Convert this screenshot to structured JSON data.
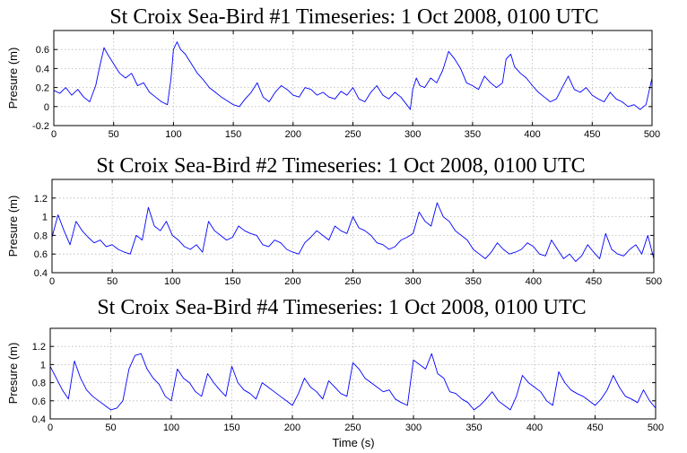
{
  "chart_data": [
    {
      "type": "line",
      "title": "St Croix Sea-Bird #1 Timeseries: 1 Oct 2008, 0100 UTC",
      "ylabel": "Presure (m)",
      "xlabel": "",
      "xlim": [
        0,
        500
      ],
      "ylim": [
        -0.2,
        0.8
      ],
      "xticks": [
        "0",
        "50",
        "100",
        "150",
        "200",
        "250",
        "300",
        "350",
        "400",
        "450",
        "500"
      ],
      "yticks": [
        "-0.2",
        "0",
        "0.2",
        "0.4",
        "0.6"
      ],
      "grid": true,
      "color": "#0000ff",
      "series": [
        {
          "x": [
            0,
            5,
            10,
            15,
            20,
            25,
            30,
            35,
            38,
            42,
            45,
            50,
            55,
            60,
            65,
            70,
            75,
            80,
            85,
            90,
            95,
            98,
            100,
            103,
            106,
            110,
            115,
            120,
            125,
            130,
            135,
            140,
            145,
            150,
            155,
            160,
            165,
            170,
            175,
            180,
            185,
            190,
            195,
            200,
            205,
            210,
            215,
            220,
            225,
            230,
            235,
            240,
            245,
            250,
            255,
            260,
            265,
            270,
            275,
            280,
            285,
            290,
            295,
            298,
            300,
            303,
            306,
            310,
            315,
            320,
            325,
            330,
            335,
            340,
            345,
            350,
            355,
            360,
            365,
            370,
            375,
            378,
            382,
            385,
            390,
            395,
            400,
            405,
            410,
            415,
            420,
            425,
            430,
            435,
            440,
            445,
            450,
            455,
            460,
            465,
            470,
            475,
            480,
            485,
            490,
            495,
            500
          ],
          "y": [
            0.17,
            0.14,
            0.2,
            0.12,
            0.18,
            0.1,
            0.05,
            0.22,
            0.4,
            0.62,
            0.55,
            0.45,
            0.35,
            0.3,
            0.35,
            0.22,
            0.25,
            0.15,
            0.1,
            0.05,
            0.02,
            0.3,
            0.6,
            0.68,
            0.6,
            0.55,
            0.45,
            0.35,
            0.28,
            0.2,
            0.15,
            0.1,
            0.06,
            0.02,
            0.0,
            0.08,
            0.15,
            0.25,
            0.1,
            0.05,
            0.15,
            0.22,
            0.18,
            0.12,
            0.1,
            0.2,
            0.18,
            0.12,
            0.15,
            0.1,
            0.08,
            0.16,
            0.12,
            0.2,
            0.08,
            0.05,
            0.15,
            0.22,
            0.12,
            0.08,
            0.15,
            0.1,
            0.02,
            -0.03,
            0.18,
            0.3,
            0.22,
            0.2,
            0.3,
            0.25,
            0.38,
            0.58,
            0.5,
            0.4,
            0.25,
            0.22,
            0.18,
            0.32,
            0.25,
            0.2,
            0.25,
            0.5,
            0.55,
            0.42,
            0.35,
            0.3,
            0.22,
            0.15,
            0.1,
            0.05,
            0.08,
            0.2,
            0.32,
            0.18,
            0.15,
            0.2,
            0.12,
            0.08,
            0.05,
            0.15,
            0.08,
            0.05,
            0.0,
            0.02,
            -0.03,
            0.02,
            0.3
          ]
        }
      ]
    },
    {
      "type": "line",
      "title": "St Croix Sea-Bird #2 Timeseries: 1 Oct 2008, 0100 UTC",
      "ylabel": "Presure (m)",
      "xlabel": "",
      "xlim": [
        0,
        500
      ],
      "ylim": [
        0.4,
        1.4
      ],
      "xticks": [
        "0",
        "50",
        "100",
        "150",
        "200",
        "250",
        "300",
        "350",
        "400",
        "450",
        "500"
      ],
      "yticks": [
        "0.4",
        "0.6",
        "0.8",
        "1",
        "1.2"
      ],
      "grid": true,
      "color": "#0000ff",
      "series": [
        {
          "x": [
            0,
            5,
            10,
            15,
            20,
            25,
            30,
            35,
            40,
            45,
            50,
            55,
            60,
            65,
            70,
            75,
            80,
            85,
            90,
            95,
            100,
            105,
            110,
            115,
            120,
            125,
            130,
            135,
            140,
            145,
            150,
            155,
            160,
            165,
            170,
            175,
            180,
            185,
            190,
            195,
            200,
            205,
            210,
            215,
            220,
            225,
            230,
            235,
            240,
            245,
            250,
            255,
            260,
            265,
            270,
            275,
            280,
            285,
            290,
            295,
            300,
            305,
            310,
            315,
            320,
            325,
            330,
            335,
            340,
            345,
            350,
            355,
            360,
            365,
            370,
            375,
            380,
            385,
            390,
            395,
            400,
            405,
            410,
            415,
            420,
            425,
            430,
            435,
            440,
            445,
            450,
            455,
            460,
            465,
            470,
            475,
            480,
            485,
            490,
            495,
            500
          ],
          "y": [
            0.78,
            1.02,
            0.85,
            0.7,
            0.95,
            0.85,
            0.78,
            0.72,
            0.75,
            0.68,
            0.7,
            0.65,
            0.62,
            0.6,
            0.8,
            0.75,
            1.1,
            0.9,
            0.85,
            0.95,
            0.8,
            0.75,
            0.68,
            0.65,
            0.7,
            0.62,
            0.95,
            0.85,
            0.8,
            0.75,
            0.78,
            0.9,
            0.85,
            0.82,
            0.8,
            0.7,
            0.68,
            0.75,
            0.72,
            0.65,
            0.62,
            0.6,
            0.72,
            0.78,
            0.85,
            0.8,
            0.75,
            0.9,
            0.85,
            0.82,
            1.0,
            0.88,
            0.85,
            0.8,
            0.72,
            0.7,
            0.65,
            0.68,
            0.75,
            0.78,
            0.82,
            1.05,
            0.95,
            0.9,
            1.15,
            1.0,
            0.95,
            0.85,
            0.8,
            0.75,
            0.65,
            0.6,
            0.55,
            0.62,
            0.72,
            0.65,
            0.6,
            0.62,
            0.65,
            0.72,
            0.68,
            0.6,
            0.58,
            0.75,
            0.65,
            0.55,
            0.6,
            0.52,
            0.58,
            0.7,
            0.62,
            0.55,
            0.82,
            0.65,
            0.6,
            0.58,
            0.65,
            0.7,
            0.6,
            0.8,
            0.55
          ]
        }
      ]
    },
    {
      "type": "line",
      "title": "St Croix Sea-Bird #4 Timeseries: 1 Oct 2008, 0100 UTC",
      "ylabel": "Presure (m)",
      "xlabel": "Time (s)",
      "xlim": [
        0,
        500
      ],
      "ylim": [
        0.4,
        1.4
      ],
      "xticks": [
        "0",
        "50",
        "100",
        "150",
        "200",
        "250",
        "300",
        "350",
        "400",
        "450",
        "500"
      ],
      "yticks": [
        "0.4",
        "0.6",
        "0.8",
        "1",
        "1.2"
      ],
      "grid": true,
      "color": "#0000ff",
      "series": [
        {
          "x": [
            0,
            5,
            10,
            15,
            20,
            25,
            30,
            35,
            40,
            45,
            50,
            55,
            60,
            65,
            70,
            75,
            80,
            85,
            90,
            95,
            100,
            105,
            110,
            115,
            120,
            125,
            130,
            135,
            140,
            145,
            150,
            155,
            160,
            165,
            170,
            175,
            180,
            185,
            190,
            195,
            200,
            205,
            210,
            215,
            220,
            225,
            230,
            235,
            240,
            245,
            250,
            255,
            260,
            265,
            270,
            275,
            280,
            285,
            290,
            295,
            300,
            305,
            310,
            315,
            320,
            325,
            330,
            335,
            340,
            345,
            350,
            355,
            360,
            365,
            370,
            375,
            380,
            385,
            390,
            395,
            400,
            405,
            410,
            415,
            420,
            425,
            430,
            435,
            440,
            445,
            450,
            455,
            460,
            465,
            470,
            475,
            480,
            485,
            490,
            495,
            500
          ],
          "y": [
            0.98,
            0.85,
            0.72,
            0.62,
            1.04,
            0.85,
            0.72,
            0.65,
            0.6,
            0.55,
            0.5,
            0.52,
            0.6,
            0.95,
            1.1,
            1.12,
            0.95,
            0.85,
            0.78,
            0.65,
            0.6,
            0.95,
            0.85,
            0.8,
            0.7,
            0.65,
            0.9,
            0.8,
            0.72,
            0.65,
            0.98,
            0.8,
            0.72,
            0.68,
            0.62,
            0.8,
            0.75,
            0.7,
            0.65,
            0.6,
            0.55,
            0.68,
            0.85,
            0.75,
            0.7,
            0.62,
            0.82,
            0.75,
            0.68,
            0.65,
            1.02,
            0.95,
            0.85,
            0.8,
            0.75,
            0.7,
            0.72,
            0.62,
            0.58,
            0.55,
            1.05,
            1.0,
            0.95,
            1.12,
            0.9,
            0.85,
            0.7,
            0.68,
            0.62,
            0.58,
            0.5,
            0.55,
            0.62,
            0.7,
            0.6,
            0.55,
            0.5,
            0.65,
            0.88,
            0.8,
            0.75,
            0.7,
            0.6,
            0.55,
            0.92,
            0.8,
            0.72,
            0.68,
            0.65,
            0.6,
            0.55,
            0.62,
            0.72,
            0.88,
            0.75,
            0.65,
            0.62,
            0.58,
            0.72,
            0.6,
            0.52
          ]
        }
      ]
    }
  ]
}
